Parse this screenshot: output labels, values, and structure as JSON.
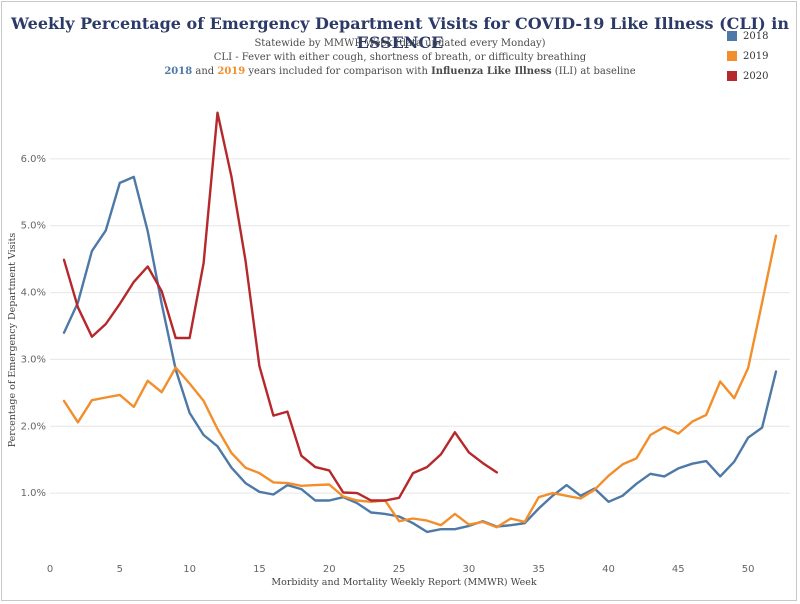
{
  "chart_data": {
    "type": "line",
    "title": "Weekly Percentage of Emergency Department Visits for COVID-19 Like Illness (CLI) in ESSENCE",
    "subtitle_1": "Statewide by MMWR Week (data updated every Monday)",
    "subtitle_2": "CLI - Fever with either cough, shortness of breath, or difficulty breathing",
    "subtitle_3": {
      "y1": "2018",
      "and": " and ",
      "y2": "2019",
      "mid": " years included for comparison with ",
      "ili": "Influenza Like Illness",
      "end": " (ILI) at baseline"
    },
    "xlabel": "Morbidity and Mortality Weekly Report (MMWR) Week",
    "ylabel": "Percentage of Emergency Department Visits",
    "xlim": [
      0,
      53
    ],
    "ylim": [
      0,
      0.07
    ],
    "x_ticks": [
      0,
      5,
      10,
      15,
      20,
      25,
      30,
      35,
      40,
      45,
      50
    ],
    "x_tick_labels": [
      "0",
      "5",
      "10",
      "15",
      "20",
      "25",
      "30",
      "35",
      "40",
      "45",
      "50"
    ],
    "y_ticks": [
      0.01,
      0.02,
      0.03,
      0.04,
      0.05,
      0.06
    ],
    "y_tick_labels": [
      "1.0%",
      "2.0%",
      "3.0%",
      "4.0%",
      "5.0%",
      "6.0%"
    ],
    "grid": "horizontal",
    "legend_position": "top-right",
    "series": [
      {
        "name": "2018",
        "color": "#4e79a7",
        "x": [
          1,
          2,
          3,
          4,
          5,
          6,
          7,
          8,
          9,
          10,
          11,
          12,
          13,
          14,
          15,
          16,
          17,
          18,
          19,
          20,
          21,
          22,
          23,
          24,
          25,
          26,
          27,
          28,
          29,
          30,
          31,
          32,
          33,
          34,
          35,
          36,
          37,
          38,
          39,
          40,
          41,
          42,
          43,
          44,
          45,
          46,
          47,
          48,
          49,
          50,
          51,
          52
        ],
        "values": [
          0.034,
          0.0385,
          0.0462,
          0.0493,
          0.0564,
          0.0573,
          0.0492,
          0.0383,
          0.0285,
          0.022,
          0.0187,
          0.017,
          0.0138,
          0.0115,
          0.0102,
          0.0098,
          0.0112,
          0.0106,
          0.0089,
          0.0089,
          0.0094,
          0.0085,
          0.0071,
          0.0069,
          0.0065,
          0.0055,
          0.0042,
          0.0046,
          0.0046,
          0.0051,
          0.0058,
          0.005,
          0.0052,
          0.0055,
          0.0077,
          0.0096,
          0.0112,
          0.0096,
          0.0107,
          0.0087,
          0.0096,
          0.0114,
          0.0129,
          0.0125,
          0.0137,
          0.0144,
          0.0148,
          0.0125,
          0.0147,
          0.0183,
          0.0198,
          0.0282
        ]
      },
      {
        "name": "2019",
        "color": "#f28e2b",
        "x": [
          1,
          2,
          3,
          4,
          5,
          6,
          7,
          8,
          9,
          10,
          11,
          12,
          13,
          14,
          15,
          16,
          17,
          18,
          19,
          20,
          21,
          22,
          23,
          24,
          25,
          26,
          27,
          28,
          29,
          30,
          31,
          32,
          33,
          34,
          35,
          36,
          37,
          38,
          39,
          40,
          41,
          42,
          43,
          44,
          45,
          46,
          47,
          48,
          49,
          50,
          51,
          52
        ],
        "values": [
          0.0238,
          0.0206,
          0.0239,
          0.0243,
          0.0247,
          0.0229,
          0.0268,
          0.0251,
          0.0288,
          0.0264,
          0.0238,
          0.0196,
          0.016,
          0.0138,
          0.013,
          0.0116,
          0.0115,
          0.0111,
          0.0112,
          0.0113,
          0.0095,
          0.0089,
          0.0087,
          0.0089,
          0.0058,
          0.0062,
          0.0059,
          0.0052,
          0.0069,
          0.0053,
          0.0057,
          0.0049,
          0.0062,
          0.0057,
          0.0094,
          0.01,
          0.0096,
          0.0092,
          0.0105,
          0.0126,
          0.0143,
          0.0152,
          0.0187,
          0.0199,
          0.0189,
          0.0207,
          0.0217,
          0.0267,
          0.0242,
          0.0287,
          0.0385,
          0.0485
        ]
      },
      {
        "name": "2020",
        "color": "#b5282b",
        "x": [
          1,
          2,
          3,
          4,
          5,
          6,
          7,
          8,
          9,
          10,
          11,
          12,
          13,
          14,
          15,
          16,
          17,
          18,
          19,
          20,
          21,
          22,
          23,
          24,
          25,
          26,
          27,
          28,
          29,
          30,
          31,
          32
        ],
        "values": [
          0.0449,
          0.0378,
          0.0334,
          0.0353,
          0.0383,
          0.0416,
          0.0439,
          0.0402,
          0.0332,
          0.0332,
          0.0444,
          0.0669,
          0.0573,
          0.0448,
          0.029,
          0.0216,
          0.0222,
          0.0156,
          0.0139,
          0.0134,
          0.0101,
          0.01,
          0.0089,
          0.0089,
          0.0093,
          0.013,
          0.0139,
          0.0158,
          0.0191,
          0.0161,
          0.0145,
          0.0131
        ]
      }
    ]
  }
}
